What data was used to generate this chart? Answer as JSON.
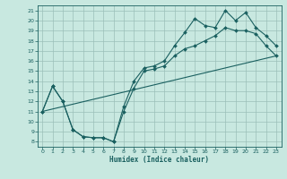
{
  "title": "",
  "xlabel": "Humidex (Indice chaleur)",
  "xlim": [
    -0.5,
    23.5
  ],
  "ylim": [
    7.5,
    21.5
  ],
  "xticks": [
    0,
    1,
    2,
    3,
    4,
    5,
    6,
    7,
    8,
    9,
    10,
    11,
    12,
    13,
    14,
    15,
    16,
    17,
    18,
    19,
    20,
    21,
    22,
    23
  ],
  "yticks": [
    8,
    9,
    10,
    11,
    12,
    13,
    14,
    15,
    16,
    17,
    18,
    19,
    20,
    21
  ],
  "bg_color": "#c8e8e0",
  "grid_color": "#9bbfb8",
  "line_color": "#1a6060",
  "line1_x": [
    0,
    1,
    2,
    3,
    4,
    5,
    6,
    7,
    8,
    9,
    10,
    11,
    12,
    13,
    14,
    15,
    16,
    17,
    18,
    19,
    20,
    21,
    22,
    23
  ],
  "line1_y": [
    11.0,
    13.5,
    12.0,
    9.2,
    8.5,
    8.4,
    8.4,
    8.0,
    11.0,
    13.3,
    15.0,
    15.2,
    15.5,
    16.5,
    17.2,
    17.5,
    18.0,
    18.5,
    19.3,
    19.0,
    19.0,
    18.7,
    17.5,
    16.5
  ],
  "line2_x": [
    0,
    1,
    2,
    3,
    4,
    5,
    6,
    7,
    8,
    9,
    10,
    11,
    12,
    13,
    14,
    15,
    16,
    17,
    18,
    19,
    20,
    21,
    22,
    23
  ],
  "line2_y": [
    11.0,
    13.5,
    12.0,
    9.2,
    8.5,
    8.4,
    8.4,
    8.0,
    11.5,
    14.0,
    15.3,
    15.5,
    16.0,
    17.5,
    18.8,
    20.2,
    19.5,
    19.3,
    21.0,
    20.0,
    20.8,
    19.3,
    18.5,
    17.5
  ],
  "line3_x": [
    0,
    23
  ],
  "line3_y": [
    11.0,
    16.5
  ]
}
